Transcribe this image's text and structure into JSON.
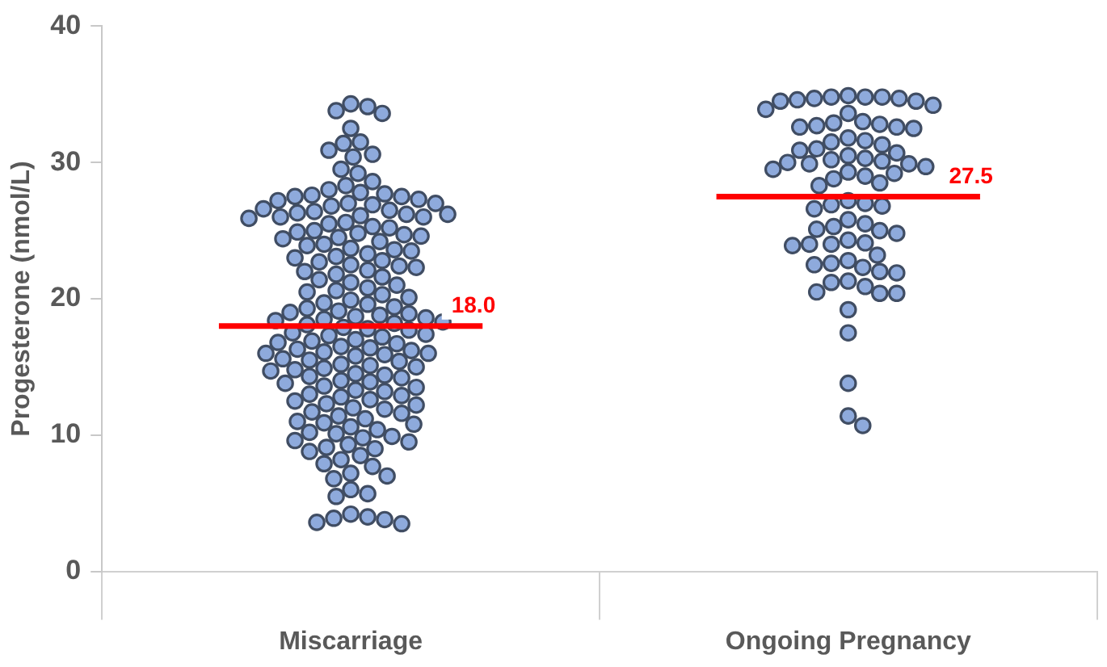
{
  "chart_data": {
    "type": "scatter",
    "ylabel": "Progesterone (nmol/L)",
    "categories": [
      "Miscarriage",
      "Ongoing Pregnancy"
    ],
    "ylim": [
      0,
      40
    ],
    "yticks": [
      0,
      10,
      20,
      30,
      40
    ],
    "grid": false,
    "legend": false,
    "marker": "circle",
    "series": [
      {
        "color": "#8eaadc",
        "x": [
          "Miscarriage",
          "Miscarriage",
          "Miscarriage",
          "Miscarriage",
          "Miscarriage",
          "Miscarriage",
          "Miscarriage",
          "Miscarriage",
          "Miscarriage",
          "Miscarriage",
          "Miscarriage",
          "Miscarriage",
          "Miscarriage",
          "Miscarriage",
          "Miscarriage",
          "Miscarriage",
          "Miscarriage",
          "Miscarriage",
          "Miscarriage",
          "Miscarriage",
          "Miscarriage",
          "Miscarriage",
          "Miscarriage",
          "Miscarriage",
          "Miscarriage",
          "Miscarriage",
          "Miscarriage",
          "Miscarriage",
          "Miscarriage",
          "Miscarriage",
          "Miscarriage",
          "Miscarriage",
          "Miscarriage",
          "Miscarriage",
          "Miscarriage",
          "Miscarriage",
          "Miscarriage",
          "Miscarriage",
          "Miscarriage",
          "Miscarriage",
          "Miscarriage",
          "Miscarriage",
          "Miscarriage",
          "Miscarriage",
          "Miscarriage",
          "Miscarriage",
          "Miscarriage",
          "Miscarriage",
          "Miscarriage",
          "Miscarriage",
          "Miscarriage",
          "Miscarriage",
          "Miscarriage",
          "Miscarriage",
          "Miscarriage",
          "Miscarriage",
          "Miscarriage",
          "Miscarriage",
          "Miscarriage",
          "Miscarriage",
          "Miscarriage",
          "Miscarriage",
          "Miscarriage",
          "Miscarriage",
          "Miscarriage",
          "Miscarriage",
          "Miscarriage",
          "Miscarriage",
          "Miscarriage",
          "Miscarriage",
          "Miscarriage",
          "Miscarriage",
          "Miscarriage",
          "Miscarriage",
          "Miscarriage",
          "Miscarriage",
          "Miscarriage",
          "Miscarriage",
          "Miscarriage",
          "Miscarriage",
          "Miscarriage",
          "Miscarriage",
          "Miscarriage",
          "Miscarriage",
          "Miscarriage",
          "Miscarriage",
          "Miscarriage",
          "Miscarriage",
          "Miscarriage",
          "Miscarriage",
          "Miscarriage",
          "Miscarriage",
          "Miscarriage",
          "Miscarriage",
          "Miscarriage",
          "Miscarriage",
          "Miscarriage",
          "Miscarriage",
          "Miscarriage",
          "Miscarriage",
          "Miscarriage",
          "Miscarriage",
          "Miscarriage",
          "Miscarriage",
          "Miscarriage",
          "Miscarriage",
          "Miscarriage",
          "Miscarriage",
          "Miscarriage",
          "Miscarriage",
          "Miscarriage",
          "Miscarriage",
          "Miscarriage",
          "Miscarriage",
          "Miscarriage",
          "Miscarriage",
          "Miscarriage",
          "Miscarriage",
          "Miscarriage",
          "Miscarriage",
          "Miscarriage",
          "Miscarriage",
          "Miscarriage",
          "Miscarriage",
          "Miscarriage",
          "Miscarriage",
          "Miscarriage",
          "Miscarriage",
          "Miscarriage",
          "Miscarriage",
          "Miscarriage",
          "Miscarriage",
          "Miscarriage",
          "Miscarriage",
          "Miscarriage",
          "Miscarriage",
          "Miscarriage",
          "Miscarriage",
          "Miscarriage",
          "Miscarriage",
          "Miscarriage",
          "Miscarriage",
          "Miscarriage",
          "Miscarriage",
          "Miscarriage",
          "Miscarriage",
          "Miscarriage",
          "Miscarriage",
          "Miscarriage",
          "Miscarriage",
          "Miscarriage",
          "Miscarriage",
          "Miscarriage",
          "Miscarriage",
          "Miscarriage",
          "Miscarriage",
          "Miscarriage",
          "Miscarriage",
          "Miscarriage",
          "Miscarriage",
          "Miscarriage",
          "Miscarriage",
          "Miscarriage",
          "Miscarriage",
          "Miscarriage",
          "Miscarriage",
          "Miscarriage",
          "Miscarriage",
          "Miscarriage",
          "Miscarriage",
          "Miscarriage",
          "Miscarriage",
          "Miscarriage"
        ],
        "values": [
          34.3,
          34.1,
          33.8,
          33.6,
          32.5,
          31.5,
          31.4,
          30.9,
          30.6,
          30.4,
          29.5,
          29.2,
          28.6,
          28.3,
          28.0,
          27.8,
          27.7,
          27.6,
          27.5,
          27.5,
          27.3,
          27.2,
          27.0,
          27.0,
          26.9,
          26.8,
          26.6,
          26.5,
          26.4,
          26.3,
          26.2,
          26.1,
          26.0,
          26.0,
          26.2,
          25.9,
          25.6,
          25.5,
          25.3,
          25.2,
          25.0,
          24.9,
          24.8,
          24.7,
          24.6,
          24.5,
          24.4,
          24.2,
          24.0,
          23.9,
          23.7,
          23.6,
          23.5,
          23.3,
          23.1,
          23.0,
          22.8,
          22.7,
          22.5,
          22.4,
          22.3,
          22.1,
          22.0,
          21.8,
          21.6,
          21.4,
          21.2,
          21.0,
          20.8,
          20.6,
          20.5,
          20.3,
          20.1,
          19.9,
          19.7,
          19.6,
          19.4,
          19.3,
          19.1,
          19.0,
          18.9,
          18.8,
          18.7,
          18.6,
          18.5,
          18.4,
          18.3,
          18.2,
          18.1,
          17.9,
          17.8,
          17.7,
          17.5,
          17.4,
          17.3,
          17.2,
          17.0,
          16.9,
          16.8,
          16.7,
          16.5,
          16.4,
          16.3,
          16.2,
          16.1,
          16.0,
          16.0,
          15.9,
          15.8,
          15.6,
          15.5,
          15.4,
          15.2,
          15.1,
          15.0,
          14.9,
          14.8,
          14.7,
          14.5,
          14.4,
          14.3,
          14.2,
          14.0,
          13.9,
          13.8,
          13.6,
          13.5,
          13.3,
          13.2,
          13.0,
          12.9,
          12.8,
          12.6,
          12.5,
          12.3,
          12.2,
          12.0,
          11.9,
          11.7,
          11.6,
          11.4,
          11.2,
          11.0,
          10.9,
          10.8,
          10.6,
          10.4,
          10.2,
          10.1,
          9.9,
          9.8,
          9.6,
          9.5,
          9.3,
          9.1,
          9.0,
          8.8,
          8.5,
          8.2,
          7.9,
          7.7,
          7.2,
          7.0,
          6.8,
          6.0,
          5.7,
          5.5,
          4.2,
          4.0,
          3.9,
          3.8,
          3.6,
          3.5
        ]
      },
      {
        "color": "#8eaadc",
        "x": [
          "Ongoing Pregnancy",
          "Ongoing Pregnancy",
          "Ongoing Pregnancy",
          "Ongoing Pregnancy",
          "Ongoing Pregnancy",
          "Ongoing Pregnancy",
          "Ongoing Pregnancy",
          "Ongoing Pregnancy",
          "Ongoing Pregnancy",
          "Ongoing Pregnancy",
          "Ongoing Pregnancy",
          "Ongoing Pregnancy",
          "Ongoing Pregnancy",
          "Ongoing Pregnancy",
          "Ongoing Pregnancy",
          "Ongoing Pregnancy",
          "Ongoing Pregnancy",
          "Ongoing Pregnancy",
          "Ongoing Pregnancy",
          "Ongoing Pregnancy",
          "Ongoing Pregnancy",
          "Ongoing Pregnancy",
          "Ongoing Pregnancy",
          "Ongoing Pregnancy",
          "Ongoing Pregnancy",
          "Ongoing Pregnancy",
          "Ongoing Pregnancy",
          "Ongoing Pregnancy",
          "Ongoing Pregnancy",
          "Ongoing Pregnancy",
          "Ongoing Pregnancy",
          "Ongoing Pregnancy",
          "Ongoing Pregnancy",
          "Ongoing Pregnancy",
          "Ongoing Pregnancy",
          "Ongoing Pregnancy",
          "Ongoing Pregnancy",
          "Ongoing Pregnancy",
          "Ongoing Pregnancy",
          "Ongoing Pregnancy",
          "Ongoing Pregnancy",
          "Ongoing Pregnancy",
          "Ongoing Pregnancy",
          "Ongoing Pregnancy",
          "Ongoing Pregnancy",
          "Ongoing Pregnancy",
          "Ongoing Pregnancy",
          "Ongoing Pregnancy",
          "Ongoing Pregnancy",
          "Ongoing Pregnancy",
          "Ongoing Pregnancy",
          "Ongoing Pregnancy",
          "Ongoing Pregnancy",
          "Ongoing Pregnancy",
          "Ongoing Pregnancy",
          "Ongoing Pregnancy",
          "Ongoing Pregnancy",
          "Ongoing Pregnancy",
          "Ongoing Pregnancy",
          "Ongoing Pregnancy",
          "Ongoing Pregnancy",
          "Ongoing Pregnancy",
          "Ongoing Pregnancy",
          "Ongoing Pregnancy",
          "Ongoing Pregnancy",
          "Ongoing Pregnancy",
          "Ongoing Pregnancy",
          "Ongoing Pregnancy",
          "Ongoing Pregnancy",
          "Ongoing Pregnancy",
          "Ongoing Pregnancy",
          "Ongoing Pregnancy",
          "Ongoing Pregnancy",
          "Ongoing Pregnancy",
          "Ongoing Pregnancy"
        ],
        "values": [
          34.9,
          34.8,
          34.8,
          34.8,
          34.7,
          34.7,
          34.6,
          34.5,
          34.5,
          34.2,
          33.9,
          33.6,
          33.0,
          32.9,
          32.8,
          32.7,
          32.6,
          32.6,
          32.5,
          31.8,
          31.6,
          31.5,
          31.3,
          31.0,
          30.9,
          30.7,
          30.5,
          30.3,
          30.2,
          30.1,
          30.0,
          29.9,
          29.9,
          29.7,
          29.5,
          29.3,
          29.2,
          29.0,
          28.8,
          28.5,
          28.3,
          27.2,
          27.0,
          26.9,
          26.8,
          26.6,
          25.8,
          25.5,
          25.3,
          25.1,
          25.0,
          24.8,
          24.3,
          24.1,
          24.0,
          23.9,
          24.0,
          23.2,
          22.8,
          22.6,
          22.5,
          22.3,
          22.0,
          21.9,
          21.3,
          21.2,
          20.9,
          20.4,
          20.4,
          20.5,
          19.2,
          17.5,
          13.8,
          11.4,
          10.7
        ]
      }
    ],
    "ref_lines": [
      {
        "axis": "y",
        "value": 18.0,
        "label": "18.0",
        "color": "#ff0000"
      },
      {
        "axis": "y",
        "value": 27.5,
        "label": "27.5",
        "color": "#ff0000"
      }
    ]
  }
}
